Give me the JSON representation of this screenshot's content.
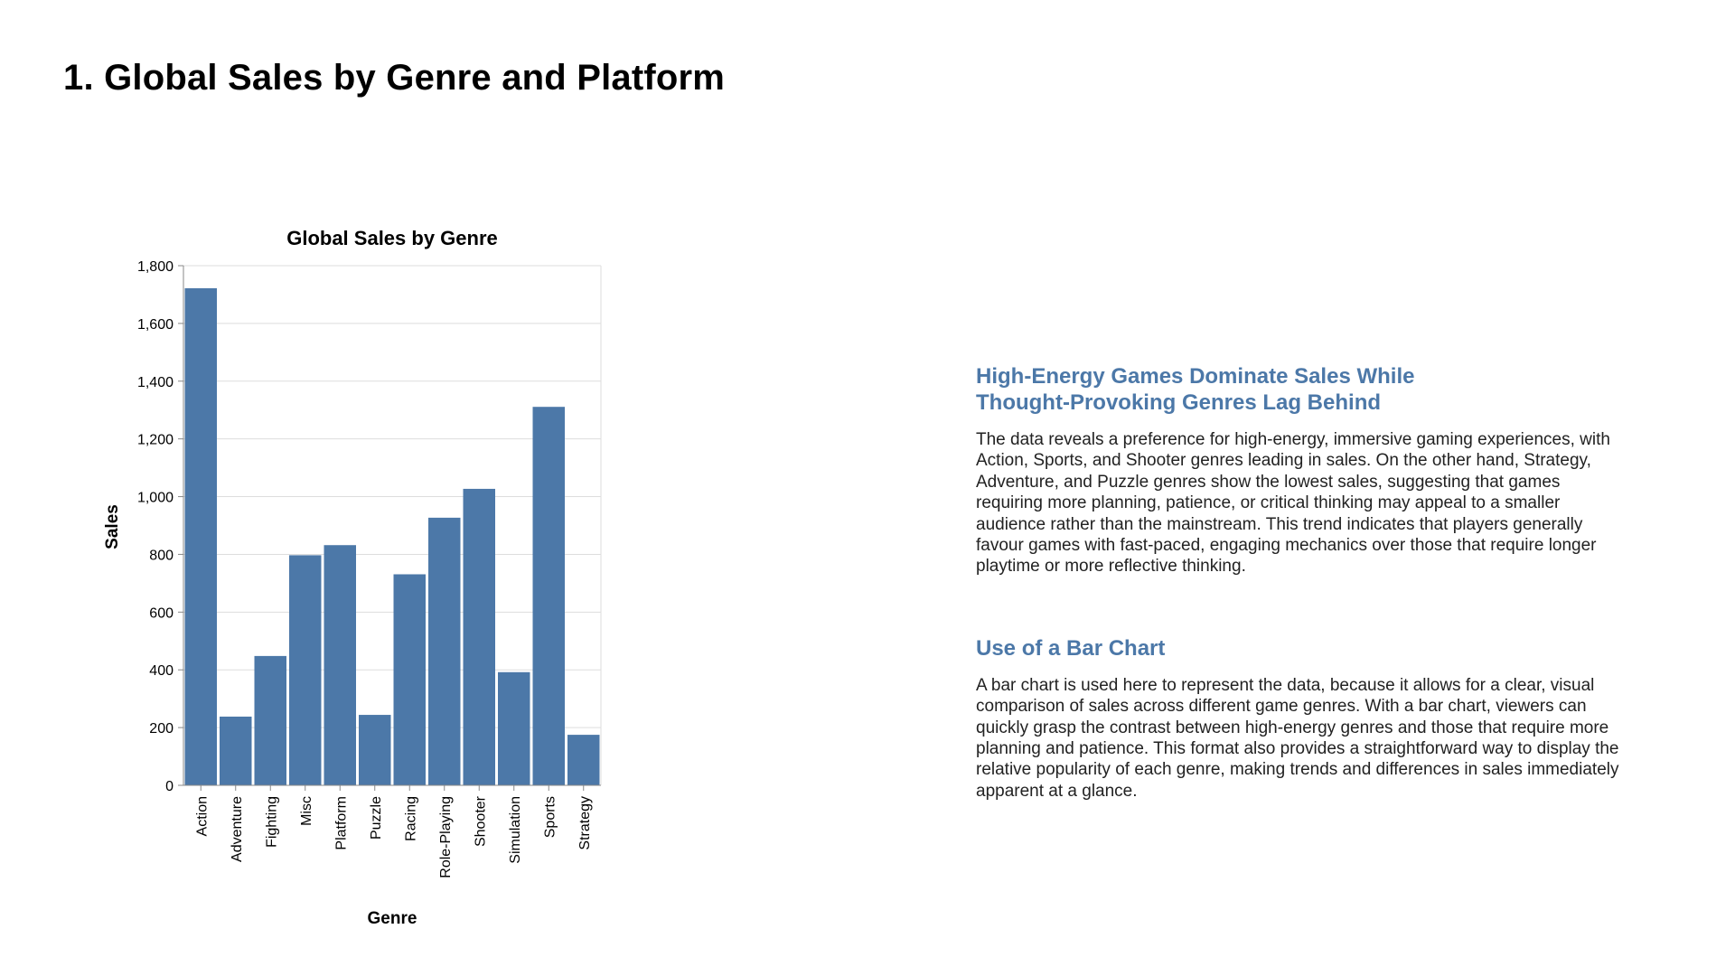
{
  "page": {
    "title": "1. Global Sales by Genre and Platform"
  },
  "chart_data": {
    "type": "bar",
    "title": "Global Sales by Genre",
    "xlabel": "Genre",
    "ylabel": "Sales",
    "categories": [
      "Action",
      "Adventure",
      "Fighting",
      "Misc",
      "Platform",
      "Puzzle",
      "Racing",
      "Role-Playing",
      "Shooter",
      "Simulation",
      "Sports",
      "Strategy"
    ],
    "values": [
      1722,
      238,
      448,
      797,
      832,
      244,
      731,
      927,
      1027,
      392,
      1311,
      175
    ],
    "ylim": [
      0,
      1800
    ],
    "yticks": [
      0,
      200,
      400,
      600,
      800,
      1000,
      1200,
      1400,
      1600,
      1800
    ],
    "ytick_labels": [
      "0",
      "200",
      "400",
      "600",
      "800",
      "1,000",
      "1,200",
      "1,400",
      "1,600",
      "1,800"
    ],
    "grid": true,
    "bar_color": "#4c78a8",
    "grid_color": "#dddddd"
  },
  "sections": [
    {
      "heading": "High-Energy Games Dominate Sales While Thought-Provoking Genres Lag Behind",
      "body": "The data reveals a preference for high-energy, immersive gaming experiences, with Action, Sports, and Shooter genres leading in sales. On the other hand, Strategy, Adventure, and Puzzle genres show the lowest sales, suggesting that games requiring more planning, patience, or critical thinking may appeal to a smaller audience rather than the mainstream. This trend indicates that players generally favour games with fast-paced, engaging mechanics over those that require longer playtime or more reflective thinking."
    },
    {
      "heading": "Use of a Bar Chart",
      "body": "A bar chart is used here to represent the data, because it allows for a clear, visual comparison of sales across different game genres. With a bar chart, viewers can quickly grasp the contrast between high-energy genres and those that require more planning and patience. This format also provides a straightforward way to display the relative popularity of each genre, making trends and differences in sales immediately apparent at a glance."
    }
  ]
}
